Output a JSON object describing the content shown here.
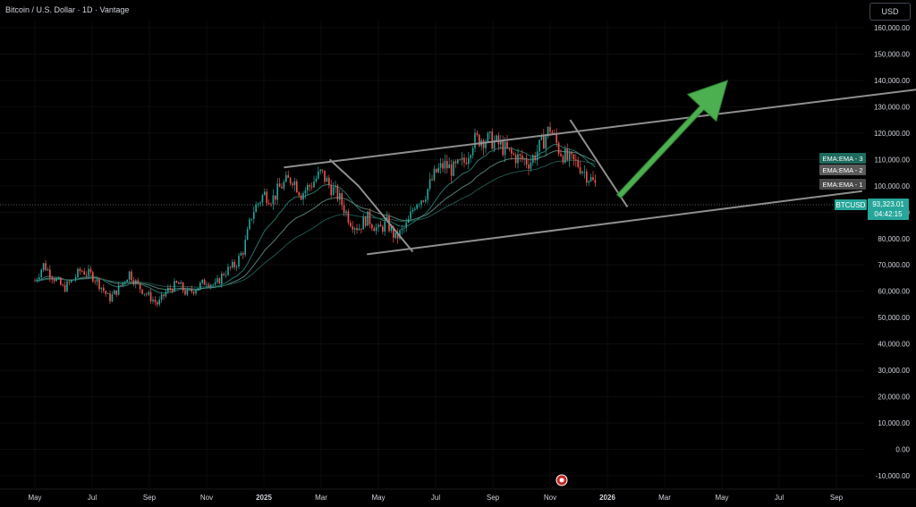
{
  "header": {
    "title": "Bitcoin / U.S. Dollar · 1D · Vantage",
    "currency": "USD"
  },
  "colors": {
    "background": "#000000",
    "up": "#26a69a",
    "down": "#ef5350",
    "channel": "#8f8f8f",
    "arrow": "#4caf50",
    "ema1": "#2a7f72",
    "ema2": "#5d8c7f",
    "ema3": "#1f5f55"
  },
  "price_label": {
    "symbol": "BTCUSD",
    "price": "93,323.01",
    "countdown": "04:42:15"
  },
  "ema_labels": [
    "EMA:EMA - 3",
    "EMA:EMA - 2",
    "EMA:EMA - 1"
  ],
  "chart_data": {
    "type": "line",
    "ylim": [
      -10000,
      160000
    ],
    "y_ticks": [
      "160,000.00",
      "150,000.00",
      "140,000.00",
      "130,000.00",
      "120,000.00",
      "110,000.00",
      "100,000.00",
      "90,000.00",
      "80,000.00",
      "70,000.00",
      "60,000.00",
      "50,000.00",
      "40,000.00",
      "30,000.00",
      "20,000.00",
      "10,000.00",
      "0.00",
      "-10,000.00"
    ],
    "x_ticks": [
      {
        "label": "May",
        "bold": false
      },
      {
        "label": "Jul",
        "bold": false
      },
      {
        "label": "Sep",
        "bold": false
      },
      {
        "label": "Nov",
        "bold": false
      },
      {
        "label": "2025",
        "bold": true
      },
      {
        "label": "Mar",
        "bold": false
      },
      {
        "label": "May",
        "bold": false
      },
      {
        "label": "Jul",
        "bold": false
      },
      {
        "label": "Sep",
        "bold": false
      },
      {
        "label": "Nov",
        "bold": false
      },
      {
        "label": "2026",
        "bold": true
      },
      {
        "label": "Mar",
        "bold": false
      },
      {
        "label": "May",
        "bold": false
      },
      {
        "label": "Jul",
        "bold": false
      },
      {
        "label": "Sep",
        "bold": false
      }
    ],
    "x_tick_months": [
      0,
      2,
      4,
      6,
      8,
      10,
      12,
      14,
      16,
      18,
      20,
      22,
      24,
      26,
      28
    ],
    "series": [
      {
        "name": "BTCUSD",
        "points": [
          [
            0,
            64000
          ],
          [
            0.3,
            70000
          ],
          [
            0.6,
            66000
          ],
          [
            1,
            61000
          ],
          [
            1.3,
            64000
          ],
          [
            1.6,
            68000
          ],
          [
            2,
            66000
          ],
          [
            2.3,
            62000
          ],
          [
            2.6,
            57000
          ],
          [
            3,
            62000
          ],
          [
            3.3,
            67000
          ],
          [
            3.6,
            62000
          ],
          [
            4,
            58000
          ],
          [
            4.3,
            55000
          ],
          [
            4.6,
            60000
          ],
          [
            5,
            63000
          ],
          [
            5.3,
            59000
          ],
          [
            5.6,
            61000
          ],
          [
            6,
            64000
          ],
          [
            6.3,
            62000
          ],
          [
            6.6,
            67000
          ],
          [
            7,
            70000
          ],
          [
            7.3,
            76000
          ],
          [
            7.6,
            90000
          ],
          [
            8,
            97000
          ],
          [
            8.3,
            95000
          ],
          [
            8.6,
            100000
          ],
          [
            9,
            103000
          ],
          [
            9.3,
            97000
          ],
          [
            9.6,
            100000
          ],
          [
            10,
            105000
          ],
          [
            10.3,
            100000
          ],
          [
            10.6,
            96000
          ],
          [
            11,
            87000
          ],
          [
            11.3,
            84000
          ],
          [
            11.6,
            88000
          ],
          [
            12,
            83000
          ],
          [
            12.3,
            86000
          ],
          [
            12.6,
            80000
          ],
          [
            13,
            85000
          ],
          [
            13.3,
            94000
          ],
          [
            13.6,
            96000
          ],
          [
            14,
            105000
          ],
          [
            14.3,
            108000
          ],
          [
            14.6,
            106000
          ],
          [
            15,
            109000
          ],
          [
            15.3,
            117000
          ],
          [
            15.6,
            118000
          ],
          [
            16,
            117000
          ],
          [
            16.3,
            115000
          ],
          [
            16.6,
            112000
          ],
          [
            17,
            110000
          ],
          [
            17.3,
            109000
          ],
          [
            17.6,
            114000
          ],
          [
            18,
            122000
          ],
          [
            18.3,
            114000
          ],
          [
            18.6,
            110000
          ],
          [
            19,
            108000
          ],
          [
            19.3,
            104000
          ],
          [
            19.6,
            100000
          ],
          [
            20,
            94000
          ]
        ]
      }
    ],
    "annotations": {
      "channel_upper": [
        [
          8.7,
          107000
        ],
        [
          34.9,
          142000
        ]
      ],
      "channel_lower": [
        [
          11.6,
          74000
        ],
        [
          28.9,
          98000
        ]
      ],
      "trendline_1": [
        [
          10.3,
          110000
        ],
        [
          11.3,
          100000
        ],
        [
          13.2,
          75000
        ]
      ],
      "trendline_2": [
        [
          18.7,
          125000
        ],
        [
          20.7,
          92000
        ]
      ],
      "arrow_from": [
        20.4,
        96000
      ],
      "arrow_to": [
        24.2,
        140000
      ]
    }
  }
}
